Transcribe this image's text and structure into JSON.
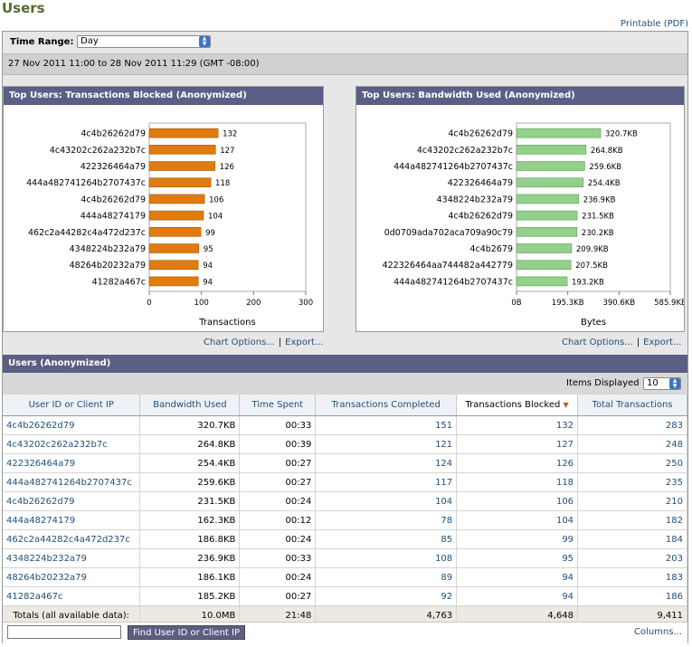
{
  "page": {
    "title": "Users",
    "printable": "Printable (PDF)"
  },
  "time_range": {
    "label": "Time Range:",
    "value": "Day",
    "dates": "27 Nov 2011 11:00 to 28 Nov 2011 11:29 (GMT -08:00)"
  },
  "charts": {
    "blocked": {
      "title": "Top Users: Transactions Blocked (Anonymized)",
      "options": "Chart Options...",
      "export": "Export..."
    },
    "bandwidth": {
      "title": "Top Users: Bandwidth Used (Anonymized)",
      "options": "Chart Options...",
      "export": "Export..."
    }
  },
  "table": {
    "title": "Users (Anonymized)",
    "items_label": "Items Displayed",
    "items_value": "10",
    "headers": [
      "User ID or Client IP",
      "Bandwidth Used",
      "Time Spent",
      "Transactions Completed",
      "Transactions Blocked",
      "Total Transactions"
    ],
    "rows": [
      [
        "4c4b26262d79",
        "320.7KB",
        "00:33",
        "151",
        "132",
        "283"
      ],
      [
        "4c43202c262a232b7c",
        "264.8KB",
        "00:39",
        "121",
        "127",
        "248"
      ],
      [
        "422326464a79",
        "254.4KB",
        "00:27",
        "124",
        "126",
        "250"
      ],
      [
        "444a482741264b2707437c",
        "259.6KB",
        "00:27",
        "117",
        "118",
        "235"
      ],
      [
        "4c4b26262d79",
        "231.5KB",
        "00:24",
        "104",
        "106",
        "210"
      ],
      [
        "444a48274179",
        "162.3KB",
        "00:12",
        "78",
        "104",
        "182"
      ],
      [
        "462c2a44282c4a472d237c",
        "186.8KB",
        "00:24",
        "85",
        "99",
        "184"
      ],
      [
        "4348224b232a79",
        "236.9KB",
        "00:33",
        "108",
        "95",
        "203"
      ],
      [
        "48264b20232a79",
        "186.1KB",
        "00:24",
        "89",
        "94",
        "183"
      ],
      [
        "41282a467c",
        "185.2KB",
        "00:27",
        "92",
        "94",
        "186"
      ]
    ],
    "totals": [
      "Totals (all available data):",
      "10.0MB",
      "21:48",
      "4,763",
      "4,648",
      "9,411"
    ],
    "find_button": "Find User ID or Client IP",
    "columns_link": "Columns..."
  },
  "chart_data": [
    {
      "type": "bar",
      "orientation": "horizontal",
      "categories": [
        "4c4b26262d79",
        "4c43202c262a232b7c",
        "422326464a79",
        "444a482741264b2707437c",
        "4c4b26262d79",
        "444a48274179",
        "462c2a44282c4a472d237c",
        "4348224b232a79",
        "48264b20232a79",
        "41282a467c"
      ],
      "values": [
        132,
        127,
        126,
        118,
        106,
        104,
        99,
        95,
        94,
        94
      ],
      "value_labels": [
        "132",
        "127",
        "126",
        "118",
        "106",
        "104",
        "99",
        "95",
        "94",
        "94"
      ],
      "xlabel": "Transactions",
      "xlim": [
        0,
        300
      ],
      "ticks": [
        "0",
        "100",
        "200",
        "300"
      ],
      "color": "#e07b0f"
    },
    {
      "type": "bar",
      "orientation": "horizontal",
      "categories": [
        "4c4b26262d79",
        "4c43202c262a232b7c",
        "444a482741264b2707437c",
        "422326464a79",
        "4348224b232a79",
        "4c4b26262d79",
        "0d0709ada702aca709a90c79",
        "4c4b2679",
        "422326464aa744482a442779",
        "444a482741264b2707437c"
      ],
      "values": [
        320.7,
        264.8,
        259.6,
        254.4,
        236.9,
        231.5,
        230.2,
        209.9,
        207.5,
        193.2
      ],
      "value_labels": [
        "320.7KB",
        "264.8KB",
        "259.6KB",
        "254.4KB",
        "236.9KB",
        "231.5KB",
        "230.2KB",
        "209.9KB",
        "207.5KB",
        "193.2KB"
      ],
      "xlabel": "Bytes",
      "xlim": [
        0,
        585.9
      ],
      "ticks": [
        "0B",
        "195.3KB",
        "390.6KB",
        "585.9KB"
      ],
      "color": "#93d08a"
    }
  ]
}
